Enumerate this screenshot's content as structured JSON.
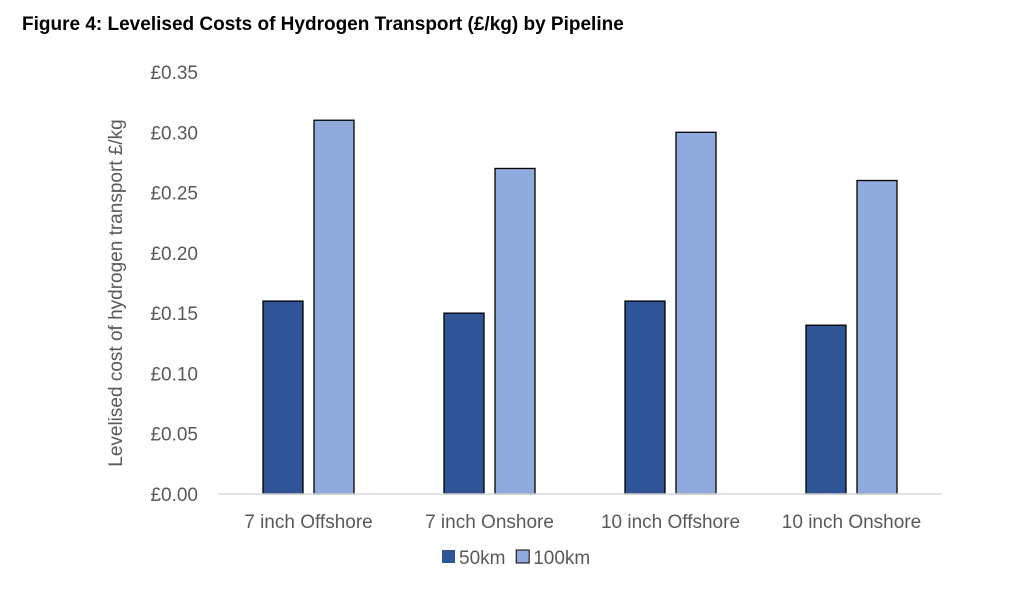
{
  "figure": {
    "title": "Figure 4: Levelised Costs of Hydrogen Transport (£/kg) by Pipeline"
  },
  "chart_data": {
    "type": "bar",
    "title": "Figure 4: Levelised Costs of Hydrogen Transport (£/kg) by Pipeline",
    "xlabel": "",
    "ylabel": "Levelised cost of hydrogen transport £/kg",
    "categories": [
      "7 inch Offshore",
      "7 inch Onshore",
      "10 inch Offshore",
      "10 inch Onshore"
    ],
    "series": [
      {
        "name": "50km",
        "values": [
          0.16,
          0.15,
          0.16,
          0.14
        ],
        "color": "#2F5597"
      },
      {
        "name": "100km",
        "values": [
          0.31,
          0.27,
          0.3,
          0.26
        ],
        "color": "#8FAADC"
      }
    ],
    "ylim": [
      0,
      0.35
    ],
    "yticks": [
      0,
      0.05,
      0.1,
      0.15,
      0.2,
      0.25,
      0.3,
      0.35
    ],
    "ytick_labels": [
      "£0.00",
      "£0.05",
      "£0.10",
      "£0.15",
      "£0.20",
      "£0.25",
      "£0.30",
      "£0.35"
    ],
    "grid": false,
    "legend_position": "bottom",
    "bar_outline_color": "#000000",
    "axis_color": "#D9D9D9"
  }
}
